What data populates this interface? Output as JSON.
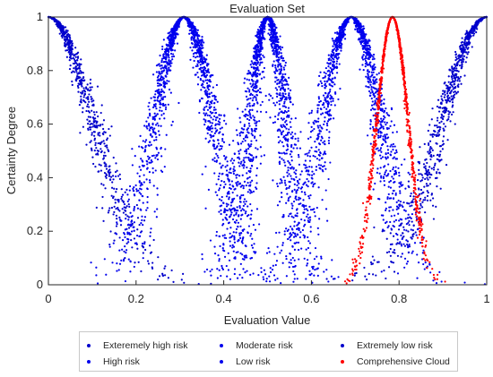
{
  "chart_data": {
    "type": "scatter",
    "title": "Evaluation Set",
    "xlabel": "Evaluation Value",
    "ylabel": "Certainty Degree",
    "xlim": [
      0,
      1
    ],
    "ylim": [
      0,
      1
    ],
    "xticks": [
      "0",
      "0.2",
      "0.4",
      "0.6",
      "0.8",
      "1"
    ],
    "yticks": [
      "0",
      "0.2",
      "0.4",
      "0.6",
      "0.8",
      "1"
    ],
    "grid": false,
    "legend_position": "bottom-outside",
    "series": [
      {
        "name": "Exteremely high risk",
        "color": "#0000cc",
        "cloud": {
          "Ex": 0.0,
          "En": 0.1031,
          "He": 0.013
        }
      },
      {
        "name": "High risk",
        "color": "#0000ee",
        "cloud": {
          "Ex": 0.309,
          "En": 0.0669,
          "He": 0.013
        }
      },
      {
        "name": "Moderate risk",
        "color": "#0000ee",
        "cloud": {
          "Ex": 0.5,
          "En": 0.0412,
          "He": 0.013
        }
      },
      {
        "name": "Low risk",
        "color": "#0000ee",
        "cloud": {
          "Ex": 0.691,
          "En": 0.0669,
          "He": 0.013
        }
      },
      {
        "name": "Extremely low risk",
        "color": "#0000cc",
        "cloud": {
          "Ex": 1.0,
          "En": 0.1031,
          "He": 0.013
        }
      },
      {
        "name": "Comprehensive Cloud",
        "color": "#ff0000",
        "cloud": {
          "Ex": 0.785,
          "En": 0.036,
          "He": 0.002
        }
      }
    ]
  }
}
